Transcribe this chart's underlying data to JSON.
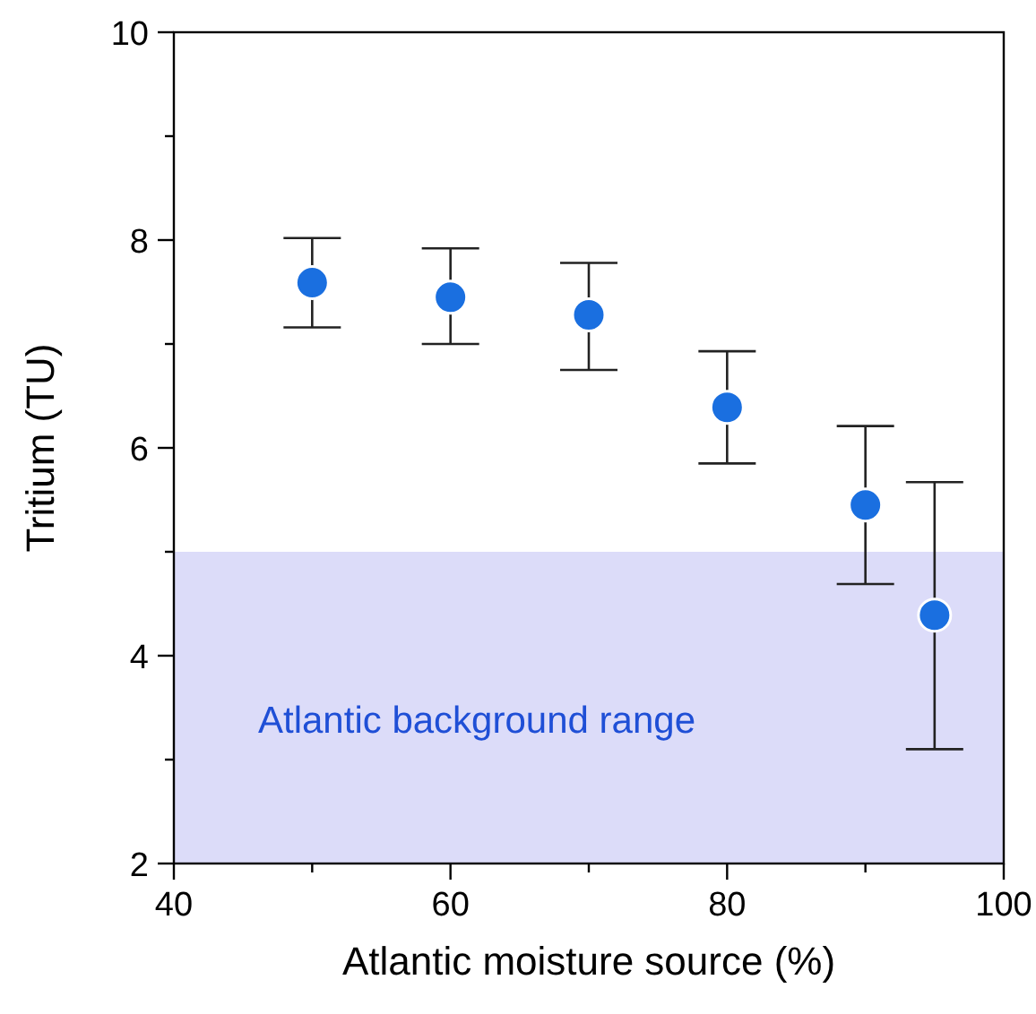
{
  "chart_data": {
    "type": "scatter",
    "xlabel": "Atlantic moisture source (%)",
    "ylabel": "Tritium (TU)",
    "x": [
      50,
      60,
      70,
      80,
      90,
      95
    ],
    "series": [
      {
        "color": "#1a6fe0",
        "values": [
          7.59,
          7.45,
          7.28,
          6.39,
          5.45,
          4.39
        ],
        "errors": [
          [
            7.16,
            8.02
          ],
          [
            7.0,
            7.92
          ],
          [
            6.75,
            7.78
          ],
          [
            5.85,
            6.93
          ],
          [
            4.69,
            6.21
          ],
          [
            3.1,
            5.67
          ]
        ]
      }
    ],
    "xlim": [
      40,
      100
    ],
    "xticks": [
      40,
      {
        "value": 50,
        "label": null
      },
      60,
      {
        "value": 70,
        "label": null
      },
      80,
      {
        "value": 90,
        "label": null
      },
      100
    ],
    "ylim": [
      2,
      10
    ],
    "yticks": [
      2,
      {
        "value": 3,
        "label": null
      },
      4,
      {
        "value": 5,
        "label": null
      },
      6,
      {
        "value": 7,
        "label": null
      },
      8,
      {
        "value": 9,
        "label": null
      },
      10
    ],
    "bands": [
      {
        "axis": "y",
        "from": 2,
        "to": 5,
        "label": "Atlantic background range",
        "color": "#dcdcf9"
      }
    ],
    "marker": "circle",
    "grid": false
  }
}
